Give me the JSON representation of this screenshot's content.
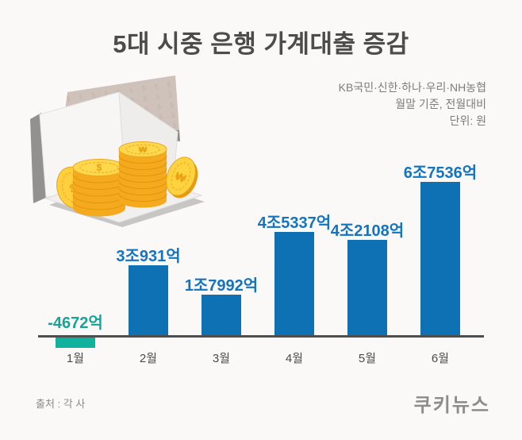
{
  "page": {
    "background": "#faf9f8"
  },
  "header": {
    "title": "5대 시중 은행 가계대출 증감"
  },
  "subtitle": {
    "line1": "KB국민·신한·하나·우리·NH농협",
    "line2": "월말 기준, 전월대비",
    "line3": "단위: 원"
  },
  "illustration": {
    "name": "passbook-with-coins",
    "coin_symbol_won": "₩",
    "coin_symbol_dollar": "$"
  },
  "chart_data": {
    "type": "bar",
    "title": "5대 시중 은행 가계대출 증감",
    "categories": [
      "1월",
      "2월",
      "3월",
      "4월",
      "5월",
      "6월"
    ],
    "values": [
      -4672,
      30931,
      17992,
      45337,
      42108,
      67536
    ],
    "value_labels": [
      "-4672억",
      "3조931억",
      "1조7992억",
      "4조5337억",
      "4조2108억",
      "6조7536억"
    ],
    "unit": "억 원",
    "ylim": [
      -5000,
      70000
    ],
    "grid": false,
    "legend": "none",
    "positive_color": "#0d71b3",
    "positive_label_color": "#1374bf",
    "negative_color": "#10b29d",
    "negative_label_color": "#15a497",
    "axis_color": "#4e4e4e"
  },
  "footer": {
    "source": "출처 : 각 사",
    "logo": "쿠키뉴스"
  }
}
